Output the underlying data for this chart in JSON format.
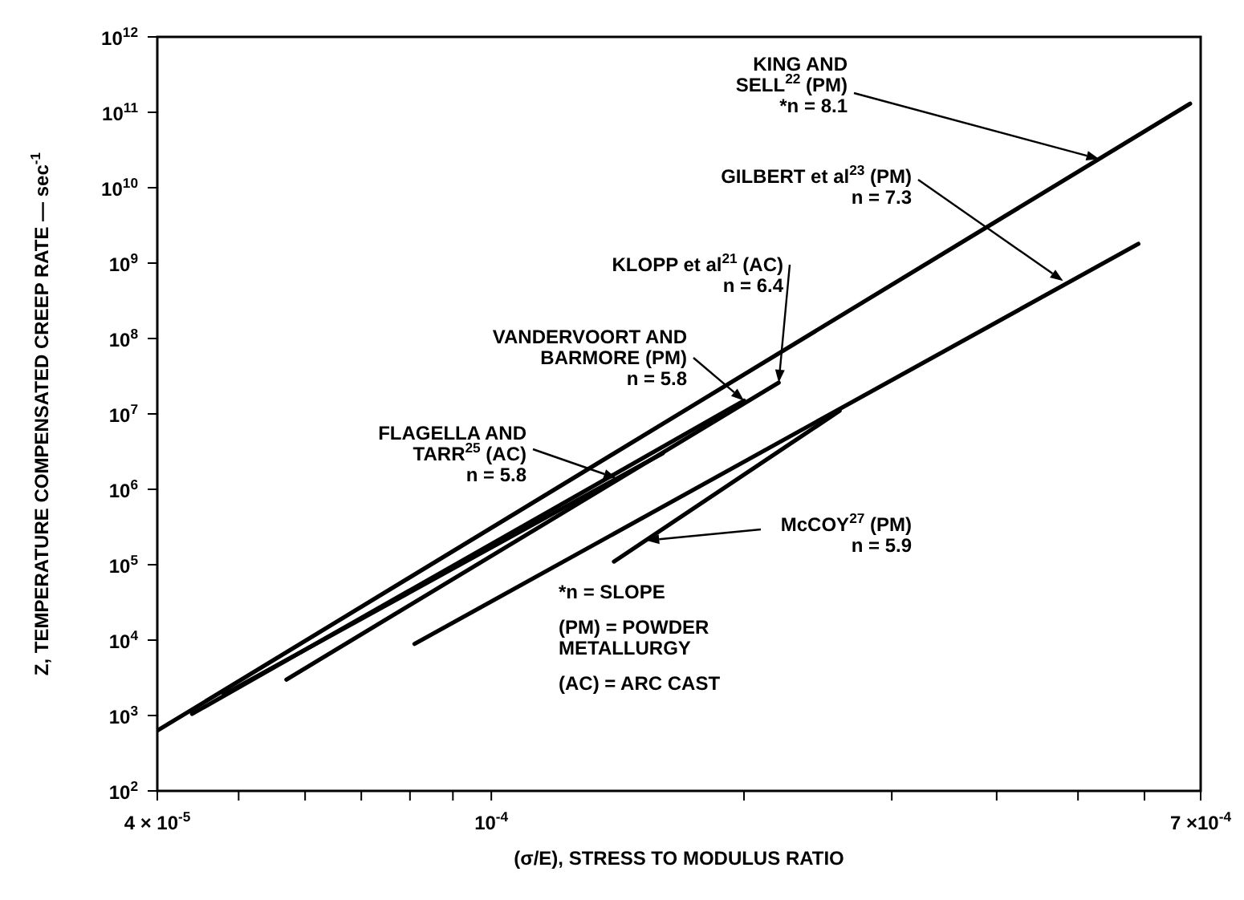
{
  "chart_data": {
    "type": "line",
    "xlabel": "(σ/E), STRESS TO MODULUS RATIO",
    "ylabel": "Z, TEMPERATURE COMPENSATED CREEP RATE — sec$^{-1}$",
    "log": "xy",
    "marker": "none",
    "line_style": "solid",
    "xlim": [
      4e-05,
      0.0007
    ],
    "xticks": [
      {
        "value": 4e-05,
        "label": "4 × 10$^{-5}$"
      },
      {
        "value": 5e-05,
        "label": null
      },
      {
        "value": 6e-05,
        "label": null
      },
      {
        "value": 7e-05,
        "label": null
      },
      {
        "value": 8e-05,
        "label": null
      },
      {
        "value": 9e-05,
        "label": null
      },
      {
        "value": 0.0001,
        "label": "10$^{-4}$"
      },
      {
        "value": 0.0002,
        "label": null
      },
      {
        "value": 0.0003,
        "label": null
      },
      {
        "value": 0.0004,
        "label": null
      },
      {
        "value": 0.0005,
        "label": null
      },
      {
        "value": 0.0006,
        "label": null
      },
      {
        "value": 0.0007,
        "label": "7 ×10$^{-4}$"
      }
    ],
    "ylim": [
      100.0,
      1000000000000.0
    ],
    "yticks": [
      {
        "value": 100.0,
        "label": "10$^{2}$"
      },
      {
        "value": 1000.0,
        "label": "10$^{3}$"
      },
      {
        "value": 10000.0,
        "label": "10$^{4}$"
      },
      {
        "value": 100000.0,
        "label": "10$^{5}$"
      },
      {
        "value": 1000000.0,
        "label": "10$^{6}$"
      },
      {
        "value": 10000000.0,
        "label": "10$^{7}$"
      },
      {
        "value": 100000000.0,
        "label": "10$^{8}$"
      },
      {
        "value": 1000000000.0,
        "label": "10$^{9}$"
      },
      {
        "value": 10000000000.0,
        "label": "10$^{10}$"
      },
      {
        "value": 100000000000.0,
        "label": "10$^{11}$"
      },
      {
        "value": 1000000000000.0,
        "label": "10$^{12}$"
      }
    ],
    "series": [
      {
        "color": "#000000",
        "x": [
          4e-05,
          0.00068
        ],
        "values": [
          630,
          130000000000.0
        ]
      },
      {
        "color": "#000000",
        "x": [
          8.1e-05,
          0.00059
        ],
        "values": [
          8900,
          1800000000.0
        ]
      },
      {
        "color": "#000000",
        "x": [
          5.7e-05,
          0.00022
        ],
        "values": [
          3000,
          26000000.0
        ]
      },
      {
        "color": "#000000",
        "x": [
          4.4e-05,
          0.0002
        ],
        "values": [
          1050,
          15000000.0
        ]
      },
      {
        "color": "#000000",
        "x": [
          4.8e-05,
          0.00016
        ],
        "values": [
          1900,
          3000000.0
        ]
      },
      {
        "color": "#000000",
        "x": [
          0.00014,
          0.00026
        ],
        "values": [
          110000.0,
          11000000.0
        ]
      }
    ],
    "annotations": [
      {
        "text": "KING AND\nSELL$^{22}$ (PM)\n*n = 8.1",
        "x": 0.00053,
        "y": 24000000000.0
      },
      {
        "text": "GILBERT et al$^{23}$ (PM)\nn = 7.3",
        "x": 0.00048,
        "y": 580000000.0
      },
      {
        "text": "KLOPP et al$^{21}$ (AC)\nn = 6.4",
        "x": 0.00022,
        "y": 26000000.0
      },
      {
        "text": "VANDERVOORT AND\nBARMORE (PM)\nn = 5.8",
        "x": 0.0002,
        "y": 15000000.0
      },
      {
        "text": "FLAGELLA AND\nTARR$^{25}$ (AC)\nn = 5.8",
        "x": 0.000141,
        "y": 1400000.0
      },
      {
        "text": "McCOY$^{27}$ (PM)\nn = 5.9",
        "x": 0.000153,
        "y": 210000.0
      },
      "*n = SLOPE",
      "(PM) = POWDER\nMETALLURGY",
      "(AC) = ARC CAST"
    ]
  }
}
